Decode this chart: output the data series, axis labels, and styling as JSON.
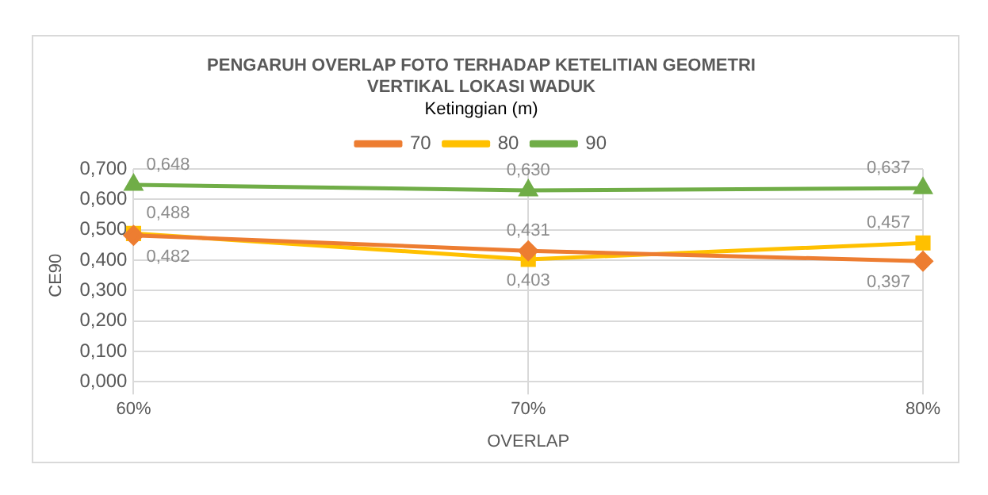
{
  "chart_data": {
    "type": "line",
    "title": "PENGARUH OVERLAP FOTO TERHADAP KETELITIAN GEOMETRI VERTIKAL LOKASI WADUK",
    "xlabel": "OVERLAP",
    "ylabel": "CE90",
    "legend_title": "Ketinggian (m)",
    "legend": "top",
    "grid": true,
    "categories": [
      "60%",
      "70%",
      "80%"
    ],
    "series": [
      {
        "name": "70",
        "color": "#ed7d31",
        "marker": "diamond",
        "values": [
          0.482,
          0.431,
          0.397
        ],
        "value_labels": [
          "0,482",
          "0,431",
          "0,397"
        ]
      },
      {
        "name": "80",
        "color": "#ffc000",
        "marker": "square",
        "values": [
          0.488,
          0.403,
          0.457
        ],
        "value_labels": [
          "0,488",
          "0,403",
          "0,457"
        ]
      },
      {
        "name": "90",
        "color": "#70ad47",
        "marker": "triangle",
        "values": [
          0.648,
          0.63,
          0.637
        ],
        "value_labels": [
          "0,648",
          "0,630",
          "0,637"
        ]
      }
    ],
    "ylim": [
      0,
      0.7
    ],
    "yticks": [
      {
        "value": 0,
        "label": "0,000"
      },
      {
        "value": 0.1,
        "label": "0,100"
      },
      {
        "value": 0.2,
        "label": "0,200"
      },
      {
        "value": 0.3,
        "label": "0,300"
      },
      {
        "value": 0.4,
        "label": "0,400"
      },
      {
        "value": 0.5,
        "label": "0,500"
      },
      {
        "value": 0.6,
        "label": "0,600"
      },
      {
        "value": 0.7,
        "label": "0,700"
      }
    ]
  }
}
